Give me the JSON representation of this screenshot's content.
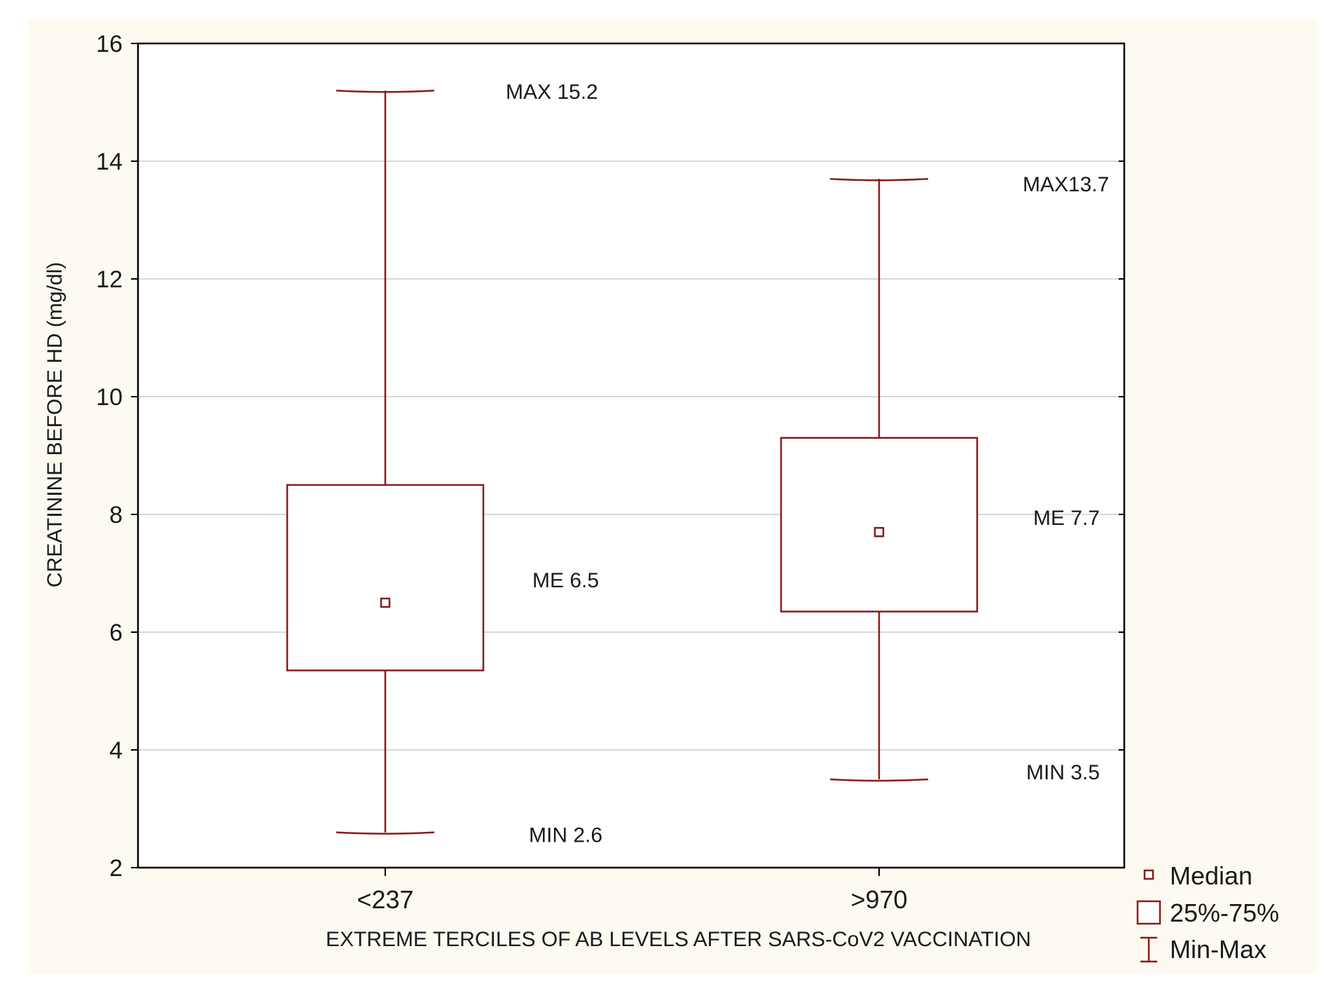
{
  "chart_data": {
    "type": "box",
    "xlabel": "EXTREME TERCILES OF AB LEVELS AFTER SARS-CoV2 VACCINATION",
    "ylabel": "CREATININE BEFORE HD (mg/dl)",
    "ylim": [
      2,
      16
    ],
    "yticks": [
      2,
      4,
      6,
      8,
      10,
      12,
      14,
      16
    ],
    "grid": true,
    "categories": [
      "<237",
      ">970"
    ],
    "boxes": [
      {
        "category": "<237",
        "min": 2.6,
        "q1": 5.35,
        "median": 6.5,
        "q3": 8.5,
        "max": 15.2
      },
      {
        "category": ">970",
        "min": 3.5,
        "q1": 6.35,
        "median": 7.7,
        "q3": 9.3,
        "max": 13.7
      }
    ],
    "annotations": [
      {
        "text": "MAX 15.2",
        "category": "<237"
      },
      {
        "text": "ME 6.5",
        "category": "<237"
      },
      {
        "text": "MIN 2.6",
        "category": "<237"
      },
      {
        "text": "MAX13.7",
        "category": ">970"
      },
      {
        "text": "ME 7.7",
        "category": ">970"
      },
      {
        "text": "MIN 3.5",
        "category": ">970"
      }
    ],
    "legend": {
      "position": "bottom-right",
      "items": [
        {
          "label": "Median",
          "symbol": "small-square"
        },
        {
          "label": "25%-75%",
          "symbol": "box"
        },
        {
          "label": "Min-Max",
          "symbol": "whisker"
        }
      ]
    },
    "colors": {
      "series": "#8b1a1a",
      "grid": "#d9d9d9",
      "background": "#fdfaf1",
      "plot_background": "#ffffff",
      "text": "#1a1a1a"
    }
  }
}
